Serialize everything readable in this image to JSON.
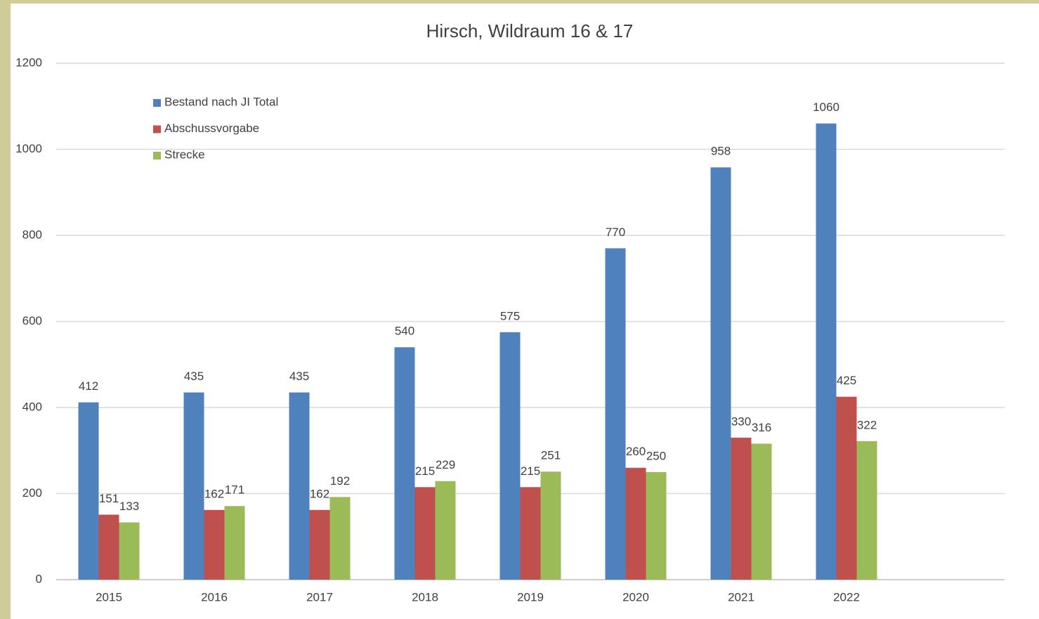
{
  "chart_data": {
    "type": "bar",
    "title": "Hirsch, Wildraum 16 & 17",
    "categories": [
      "2015",
      "2016",
      "2017",
      "2018",
      "2019",
      "2020",
      "2021",
      "2022",
      null
    ],
    "series": [
      {
        "name": "Bestand nach JI Total",
        "color": "#4f81bd",
        "values": [
          412,
          435,
          435,
          540,
          575,
          770,
          958,
          1060,
          null
        ]
      },
      {
        "name": "Abschussvorgabe",
        "color": "#c0504d",
        "values": [
          151,
          162,
          162,
          215,
          215,
          260,
          330,
          425,
          null
        ]
      },
      {
        "name": "Strecke",
        "color": "#9bbb59",
        "values": [
          133,
          171,
          192,
          229,
          251,
          250,
          316,
          322,
          null
        ]
      }
    ],
    "ylim": [
      0,
      1200
    ],
    "yticks": [
      0,
      200,
      400,
      600,
      800,
      1000,
      1200
    ],
    "grid": true,
    "legend": "upper left"
  }
}
